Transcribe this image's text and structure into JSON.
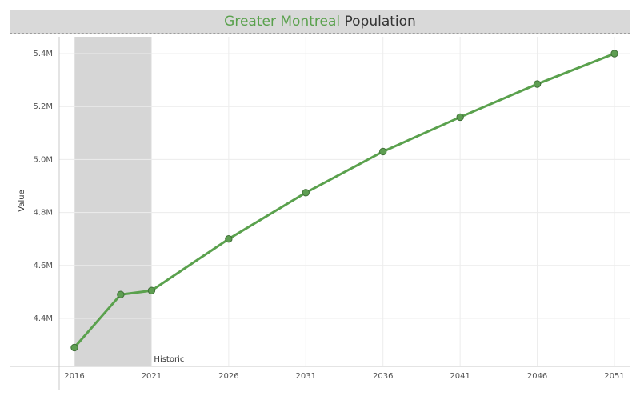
{
  "title": {
    "accent": "Greater Montreal",
    "rest": "Population"
  },
  "colors": {
    "line": "#5aa14d",
    "marker": "#5e9e52",
    "marker_stroke": "#3f6f37",
    "band": "#d6d6d6",
    "title_accent": "#5aa14d"
  },
  "chart_data": {
    "type": "line",
    "ylabel": "Value",
    "xlabel": "",
    "grid": true,
    "xlim": [
      2016,
      2051
    ],
    "ylim": [
      4.25,
      5.45
    ],
    "x_ticks": [
      2016,
      2021,
      2026,
      2031,
      2036,
      2041,
      2046,
      2051
    ],
    "y_ticks": [
      4.4,
      4.6,
      4.8,
      5.0,
      5.2,
      5.4
    ],
    "y_tick_labels": [
      "4.4M",
      "4.6M",
      "4.8M",
      "5.0M",
      "5.2M",
      "5.4M"
    ],
    "series": [
      {
        "x": [
          2016,
          2019,
          2021,
          2026,
          2031,
          2036,
          2041,
          2046,
          2051
        ],
        "y": [
          4.29,
          4.49,
          4.505,
          4.7,
          4.875,
          5.03,
          5.16,
          5.285,
          5.4
        ]
      }
    ],
    "annotations": [
      {
        "label": "Historic",
        "x_start": 2016,
        "x_end": 2021
      }
    ]
  }
}
